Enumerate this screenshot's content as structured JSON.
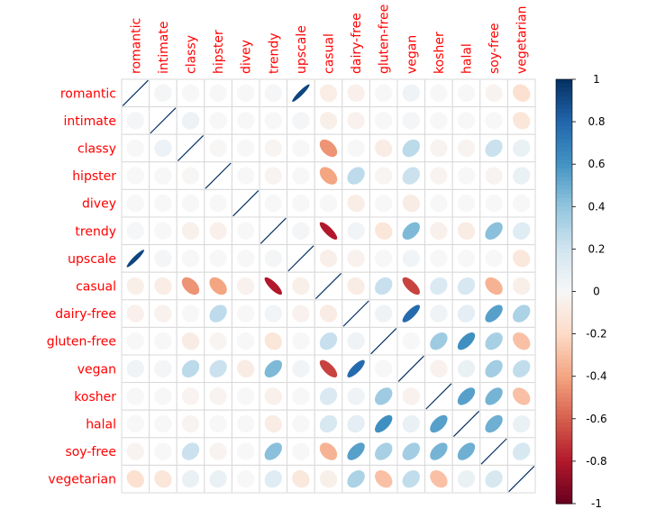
{
  "chart_data": {
    "type": "heatmap",
    "subtype": "correlation-ellipse",
    "title": "",
    "labels": [
      "romantic",
      "intimate",
      "classy",
      "hipster",
      "divey",
      "trendy",
      "upscale",
      "casual",
      "dairy-free",
      "gluten-free",
      "vegan",
      "kosher",
      "halal",
      "soy-free",
      "vegetarian"
    ],
    "matrix": [
      [
        1,
        0.02,
        0,
        0,
        0,
        0.01,
        0.92,
        -0.07,
        -0.05,
        0,
        0.04,
        0,
        0,
        -0.03,
        -0.16
      ],
      [
        0.02,
        1,
        0.06,
        0,
        0,
        0,
        0.02,
        -0.06,
        -0.04,
        0,
        0.02,
        0,
        0,
        0,
        -0.12
      ],
      [
        0,
        0.06,
        1,
        -0.01,
        0,
        -0.02,
        0,
        -0.45,
        0,
        -0.08,
        0.27,
        -0.03,
        -0.03,
        0.22,
        0.07
      ],
      [
        0,
        0,
        -0.01,
        1,
        0,
        -0.03,
        0,
        -0.4,
        0.26,
        -0.02,
        0.22,
        -0.03,
        0,
        -0.03,
        0.07
      ],
      [
        0,
        0,
        0,
        0,
        1,
        0,
        0,
        0,
        -0.07,
        0,
        -0.08,
        0,
        0,
        0,
        0
      ],
      [
        0.01,
        0,
        -0.05,
        -0.05,
        0,
        1,
        0.02,
        -0.8,
        0.03,
        -0.12,
        0.45,
        -0.05,
        -0.08,
        0.42,
        0.12
      ],
      [
        0.92,
        0.02,
        0,
        0,
        0,
        0.02,
        1,
        -0.06,
        -0.04,
        0,
        0.03,
        0,
        0,
        0,
        -0.11
      ],
      [
        -0.06,
        -0.07,
        -0.45,
        -0.4,
        -0.04,
        -0.8,
        -0.06,
        1,
        -0.08,
        0.23,
        -0.68,
        0.15,
        0.17,
        -0.35,
        -0.06
      ],
      [
        -0.05,
        -0.04,
        0,
        0.26,
        0,
        0.03,
        -0.04,
        -0.08,
        1,
        0.04,
        0.78,
        0.04,
        0.1,
        0.55,
        0.32
      ],
      [
        0,
        0,
        -0.08,
        -0.02,
        0,
        -0.12,
        0,
        0.23,
        0.04,
        1,
        0,
        0.36,
        0.62,
        0.33,
        -0.3
      ],
      [
        0.04,
        0.02,
        0.27,
        0.22,
        -0.08,
        0.45,
        0.03,
        -0.68,
        0.78,
        0,
        1,
        -0.04,
        0.07,
        0.35,
        0.25
      ],
      [
        0,
        0,
        -0.03,
        -0.03,
        0,
        -0.05,
        0,
        0.15,
        0.04,
        0.36,
        -0.04,
        1,
        0.55,
        0.47,
        -0.3
      ],
      [
        0,
        0,
        -0.03,
        0,
        0,
        -0.08,
        0,
        0.17,
        0.1,
        0.62,
        0.07,
        0.55,
        1,
        0.49,
        0.07
      ],
      [
        -0.03,
        0,
        0.22,
        -0.03,
        0,
        0.42,
        0,
        -0.35,
        0.55,
        0.33,
        0.35,
        0.47,
        0.49,
        1,
        0.17
      ],
      [
        -0.16,
        -0.12,
        0.07,
        0.07,
        0,
        0.12,
        -0.11,
        -0.06,
        0.32,
        -0.3,
        0.25,
        -0.3,
        0.07,
        0.17,
        1
      ]
    ],
    "colorbar": {
      "ticks": [
        1,
        0.8,
        0.6,
        0.4,
        0.2,
        0,
        -0.2,
        -0.4,
        -0.6,
        -0.8,
        -1
      ],
      "tick_labels": [
        "1",
        "0.8",
        "0.6",
        "0.4",
        "0.2",
        "0",
        "-0.2",
        "-0.4",
        "-0.6",
        "-0.8",
        "-1"
      ],
      "range": [
        -1,
        1
      ]
    },
    "colors": {
      "label_color": "#ff0000",
      "grid_color": "#d9d9d9",
      "positive_max": "#053061",
      "negative_max": "#67001f",
      "neutral": "#f7f7f7"
    },
    "diagonal_style": "line"
  }
}
